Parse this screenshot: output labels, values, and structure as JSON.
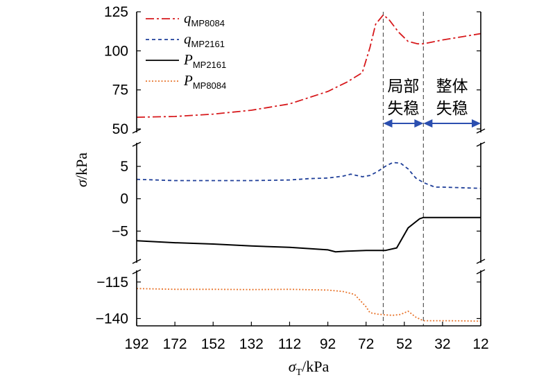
{
  "chart_data": {
    "type": "line",
    "xlabel_symbol": "σ",
    "xlabel_sub": "T",
    "xlabel_unit": "/kPa",
    "ylabel_symbol": "σ",
    "ylabel_unit": "/kPa",
    "x_reversed": true,
    "xlim": [
      192,
      12
    ],
    "x_ticks": [
      192,
      172,
      152,
      132,
      112,
      92,
      72,
      52,
      32,
      12
    ],
    "y_axis_break": true,
    "panels": [
      {
        "name": "top",
        "ylim": [
          50,
          125
        ],
        "y_ticks": [
          50,
          75,
          100,
          125
        ]
      },
      {
        "name": "middle",
        "ylim": [
          -10,
          8
        ],
        "y_ticks": [
          -5,
          0,
          5
        ]
      },
      {
        "name": "bottom",
        "ylim": [
          -145,
          -108
        ],
        "y_ticks": [
          -140,
          -115
        ]
      }
    ],
    "series": [
      {
        "name": "q",
        "sub": "MP8084",
        "panel": "top",
        "color": "#d7191c",
        "dash": "12,4,3,4",
        "x": [
          192,
          172,
          152,
          132,
          112,
          92,
          82,
          74,
          70,
          67,
          63,
          60,
          55,
          50,
          45,
          42,
          32,
          22,
          12
        ],
        "y": [
          57.5,
          58,
          59.5,
          62,
          66,
          74,
          80,
          86,
          102,
          117,
          123,
          120,
          112,
          106,
          104.5,
          104.5,
          107,
          109,
          111
        ]
      },
      {
        "name": "q",
        "sub": "MP2161",
        "panel": "middle",
        "color": "#1f3f99",
        "dash": "5,4",
        "x": [
          192,
          172,
          152,
          132,
          112,
          102,
          92,
          84,
          80,
          74,
          70,
          66,
          62,
          58,
          54,
          50,
          46,
          42,
          36,
          32,
          22,
          12
        ],
        "y": [
          3,
          2.8,
          2.8,
          2.8,
          2.9,
          3.1,
          3.2,
          3.5,
          3.8,
          3.4,
          3.6,
          4.2,
          5.0,
          5.6,
          5.5,
          4.6,
          3.2,
          2.5,
          1.8,
          1.8,
          1.7,
          1.6
        ]
      },
      {
        "name": "P",
        "sub": "MP2161",
        "panel": "middle",
        "color": "#000000",
        "dash": "",
        "x": [
          192,
          172,
          152,
          132,
          112,
          92,
          88,
          82,
          72,
          62,
          56,
          50,
          44,
          42,
          32,
          22,
          12
        ],
        "y": [
          -6.5,
          -6.8,
          -7.0,
          -7.3,
          -7.5,
          -7.9,
          -8.2,
          -8.1,
          -8.0,
          -8.0,
          -7.6,
          -4.5,
          -3.1,
          -2.9,
          -2.9,
          -2.9,
          -2.9
        ]
      },
      {
        "name": "P",
        "sub": "MP8084",
        "panel": "bottom",
        "color": "#e8742c",
        "dash": "2,2.5",
        "x": [
          192,
          172,
          152,
          132,
          112,
          92,
          84,
          78,
          72,
          70,
          66,
          62,
          58,
          54,
          50,
          46,
          42,
          32,
          22,
          12
        ],
        "y": [
          -119.5,
          -120,
          -120,
          -120.2,
          -120,
          -120.5,
          -121.5,
          -123.5,
          -132,
          -136,
          -137,
          -137.5,
          -137.8,
          -137.2,
          -135,
          -139,
          -141.5,
          -141.5,
          -141.6,
          -141.8
        ]
      }
    ],
    "vlines": [
      63,
      42
    ],
    "annotations": [
      {
        "lines": [
          "局部",
          "失稳"
        ]
      },
      {
        "lines": [
          "整体",
          "失稳"
        ]
      }
    ]
  }
}
